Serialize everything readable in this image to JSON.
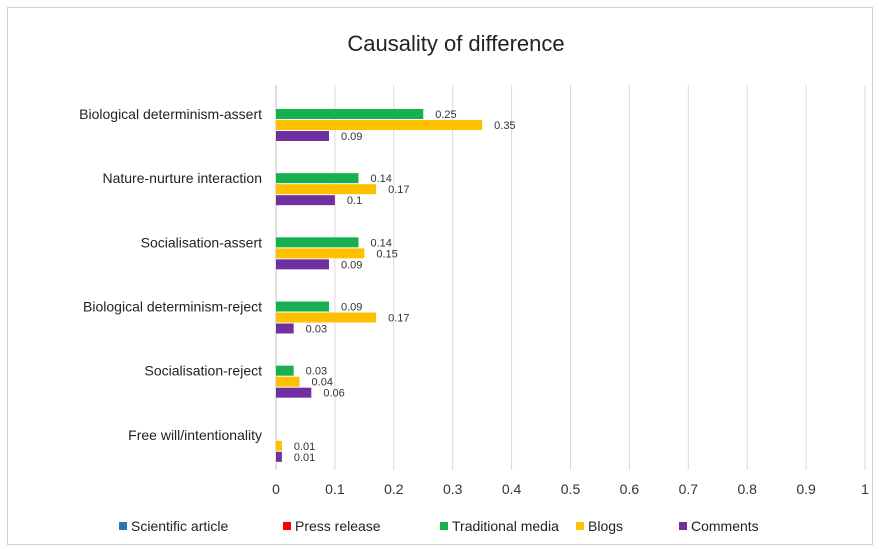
{
  "chart_data": {
    "type": "bar",
    "orientation": "horizontal",
    "title": "Causality of difference",
    "categories": [
      "Biological determinism-assert",
      "Nature-nurture interaction",
      "Socialisation-assert",
      "Biological determinism-reject",
      "Socialisation-reject",
      "Free will/intentionality"
    ],
    "series": [
      {
        "name": "Scientific article",
        "color": "#2e75b6",
        "values": [
          null,
          null,
          null,
          null,
          null,
          null
        ]
      },
      {
        "name": "Press release",
        "color": "#ff0000",
        "values": [
          null,
          null,
          null,
          null,
          null,
          null
        ]
      },
      {
        "name": "Traditional media",
        "color": "#17b04f",
        "values": [
          0.25,
          0.14,
          0.14,
          0.09,
          0.03,
          null
        ]
      },
      {
        "name": "Blogs",
        "color": "#ffc000",
        "values": [
          0.35,
          0.17,
          0.15,
          0.17,
          0.04,
          0.01
        ]
      },
      {
        "name": "Comments",
        "color": "#7030a0",
        "values": [
          0.09,
          0.1,
          0.09,
          0.03,
          0.06,
          0.01
        ]
      }
    ],
    "xlim": [
      0,
      1
    ],
    "xticks": [
      "0",
      "0.1",
      "0.2",
      "0.3",
      "0.4",
      "0.5",
      "0.6",
      "0.7",
      "0.8",
      "0.9",
      "1"
    ],
    "grid": "vertical",
    "legend": "bottom"
  }
}
